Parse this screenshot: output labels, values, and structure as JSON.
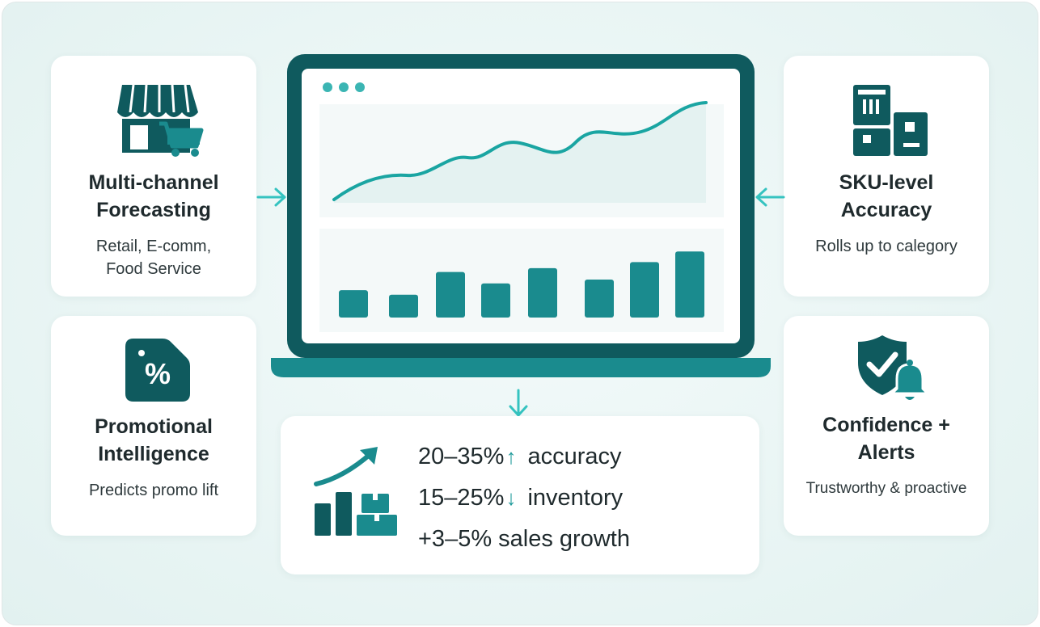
{
  "cards": {
    "multichannel": {
      "title_line1": "Multi-channel",
      "title_line2": "Forecasting",
      "sub_line1": "Retail, E-comm,",
      "sub_line2": "Food Service",
      "icon": "storefront-cart-icon"
    },
    "promo": {
      "title_line1": "Promotional",
      "title_line2": "Intelligence",
      "sub_line1": "Predicts promo lift",
      "icon": "percent-tag-icon"
    },
    "sku": {
      "title_line1": "SKU-level",
      "title_line2": "Accuracy",
      "sub_line1": "Rolls up to calegory",
      "icon": "boxes-icon"
    },
    "confidence": {
      "title_line1": "Confidence +",
      "title_line2": "Alerts",
      "sub_line1": "Trustworthy & proactive",
      "icon": "shield-check-bell-icon"
    }
  },
  "laptop": {
    "icon": "laptop-dashboard-icon",
    "bar_values": [
      0.36,
      0.3,
      0.6,
      0.45,
      0.65,
      0.5,
      0.73,
      0.87
    ]
  },
  "results": {
    "icon": "growth-chart-boxes-icon",
    "rows": [
      {
        "value": "20–35%",
        "direction": "↑",
        "label": "accuracy"
      },
      {
        "value": "15–25%",
        "direction": "↓",
        "label": "inventory"
      },
      {
        "value": "+3–5% sales growth"
      }
    ]
  },
  "colors": {
    "dark_teal": "#0f5a5e",
    "teal": "#1a8b8e",
    "accent": "#35c3c0",
    "light_teal": "#e6f4f3"
  }
}
